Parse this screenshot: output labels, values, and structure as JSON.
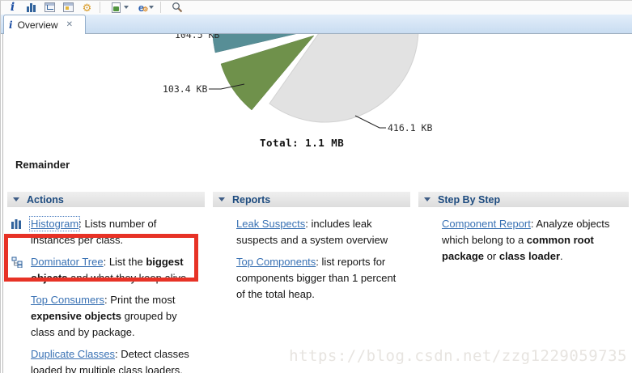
{
  "toolbar": {
    "icons": [
      "info-icon",
      "histogram-icon",
      "dominator-tree-icon",
      "oql-icon",
      "gear-icon",
      "report-icon",
      "expert-system-icon",
      "search-icon"
    ]
  },
  "tab": {
    "label": "Overview",
    "icon": "info-icon",
    "close_glyph": "✕"
  },
  "chart": {
    "labels": {
      "top": "104.5 KB",
      "left": "103.4 KB",
      "right": "416.1 KB"
    },
    "total": "Total: 1.1 MB",
    "legend": "Remainder",
    "colors": {
      "teal": "#578e96",
      "green": "#6f914b",
      "remainder": "#e2e2e2"
    }
  },
  "chart_data": {
    "type": "pie",
    "title": "Total: 1.1 MB",
    "slices": [
      {
        "label": "104.5 KB",
        "value_kb": 104.5,
        "color": "#578e96"
      },
      {
        "label": "103.4 KB",
        "value_kb": 103.4,
        "color": "#6f914b"
      },
      {
        "label": "416.1 KB",
        "value_kb": 416.1,
        "color": "#e2e2e2",
        "legend": "Remainder"
      }
    ],
    "total_label": "Total: 1.1 MB",
    "legend_entries": [
      "Remainder"
    ],
    "layout": "pie partially scrolled out of view at top; labels with leader lines; total centered below"
  },
  "sections": [
    {
      "title": "Actions",
      "items": [
        {
          "icon": "histogram-icon",
          "link": "Histogram",
          "focused": true,
          "desc": [
            {
              "v": ": Lists number of instances per class."
            }
          ]
        },
        {
          "icon": "dominator-tree-icon",
          "link": "Dominator Tree",
          "annotated": true,
          "desc": [
            {
              "v": ": List the "
            },
            {
              "b": true,
              "v": "biggest objects"
            },
            {
              "v": " and what they keep alive."
            }
          ]
        },
        {
          "link": "Top Consumers",
          "desc": [
            {
              "v": ": Print the most "
            },
            {
              "b": true,
              "v": "expensive objects"
            },
            {
              "v": " grouped by class and by package."
            }
          ]
        },
        {
          "link": "Duplicate Classes",
          "desc": [
            {
              "v": ": Detect classes loaded by multiple class loaders."
            }
          ]
        }
      ]
    },
    {
      "title": "Reports",
      "items": [
        {
          "link": "Leak Suspects",
          "desc": [
            {
              "v": ": includes leak suspects and a system overview"
            }
          ]
        },
        {
          "link": "Top Components",
          "desc": [
            {
              "v": ": list reports for components bigger than 1 percent of the total heap."
            }
          ]
        }
      ]
    },
    {
      "title": "Step By Step",
      "items": [
        {
          "link": "Component Report",
          "desc": [
            {
              "v": ": Analyze objects which belong to a "
            },
            {
              "b": true,
              "v": "common root package"
            },
            {
              "v": " or "
            },
            {
              "b": true,
              "v": "class loader"
            },
            {
              "v": "."
            }
          ]
        }
      ]
    }
  ],
  "annotation": {
    "color": "#e73226"
  },
  "watermark": {
    "text": "https://blog.csdn.net/zzg1229059735"
  }
}
